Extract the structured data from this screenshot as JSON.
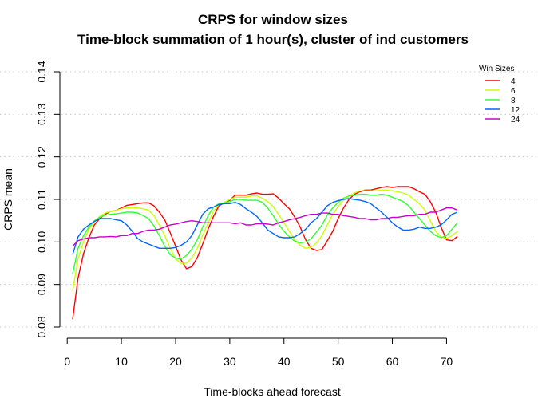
{
  "chart_data": {
    "type": "line",
    "title_line1": "CRPS for window sizes",
    "title_line2": "Time-block summation of 1 hour(s), cluster of ind customers",
    "xlabel": "Time-blocks ahead forecast",
    "ylabel": "CRPS mean",
    "xlim": [
      0,
      72
    ],
    "ylim": [
      0.08,
      0.14
    ],
    "x_ticks": [
      "0",
      "10",
      "20",
      "30",
      "40",
      "50",
      "60",
      "70"
    ],
    "y_ticks": [
      "0.08",
      "0.09",
      "0.10",
      "0.11",
      "0.12",
      "0.13",
      "0.14"
    ],
    "grid": "horizontal dotted",
    "legend_title": "Win Sizes",
    "legend_position": "top-right",
    "x": [
      1,
      2,
      3,
      4,
      5,
      6,
      7,
      8,
      9,
      10,
      11,
      12,
      13,
      14,
      15,
      16,
      17,
      18,
      19,
      20,
      21,
      22,
      23,
      24,
      25,
      26,
      27,
      28,
      29,
      30,
      31,
      32,
      33,
      34,
      35,
      36,
      37,
      38,
      39,
      40,
      41,
      42,
      43,
      44,
      45,
      46,
      47,
      48,
      49,
      50,
      51,
      52,
      53,
      54,
      55,
      56,
      57,
      58,
      59,
      60,
      61,
      62,
      63,
      64,
      65,
      66,
      67,
      68,
      69,
      70,
      71,
      72
    ],
    "series": [
      {
        "name": "4",
        "color": "#ff0000",
        "values": [
          0.0818,
          0.0915,
          0.0972,
          0.101,
          0.104,
          0.1055,
          0.1065,
          0.1072,
          0.1074,
          0.108,
          0.1086,
          0.1088,
          0.109,
          0.1092,
          0.1092,
          0.1085,
          0.107,
          0.1052,
          0.1022,
          0.099,
          0.0958,
          0.0937,
          0.0942,
          0.0963,
          0.0995,
          0.103,
          0.106,
          0.1085,
          0.1092,
          0.1098,
          0.111,
          0.111,
          0.111,
          0.1113,
          0.1115,
          0.1112,
          0.1112,
          0.1113,
          0.1103,
          0.109,
          0.1078,
          0.1058,
          0.1035,
          0.1005,
          0.0985,
          0.098,
          0.0982,
          0.1003,
          0.1025,
          0.1055,
          0.108,
          0.11,
          0.1112,
          0.1118,
          0.1122,
          0.1122,
          0.1125,
          0.1128,
          0.113,
          0.1128,
          0.113,
          0.113,
          0.113,
          0.1125,
          0.1118,
          0.1112,
          0.1095,
          0.107,
          0.1035,
          0.1005,
          0.1003,
          0.1013
        ]
      },
      {
        "name": "6",
        "color": "#ccff00",
        "values": [
          0.0885,
          0.096,
          0.1,
          0.103,
          0.1048,
          0.106,
          0.1068,
          0.1072,
          0.1074,
          0.1078,
          0.108,
          0.108,
          0.108,
          0.1078,
          0.1075,
          0.1062,
          0.104,
          0.1015,
          0.0985,
          0.096,
          0.095,
          0.095,
          0.0962,
          0.0985,
          0.1015,
          0.1045,
          0.1072,
          0.1088,
          0.1093,
          0.11,
          0.1105,
          0.1105,
          0.1105,
          0.1108,
          0.1108,
          0.1103,
          0.1095,
          0.1083,
          0.1065,
          0.1045,
          0.1025,
          0.1005,
          0.0992,
          0.0985,
          0.0988,
          0.0997,
          0.1015,
          0.104,
          0.1065,
          0.1083,
          0.1098,
          0.1108,
          0.1115,
          0.112,
          0.112,
          0.112,
          0.112,
          0.1122,
          0.1122,
          0.112,
          0.1118,
          0.1115,
          0.111,
          0.11,
          0.109,
          0.1075,
          0.105,
          0.1025,
          0.1012,
          0.1008,
          0.1015,
          0.1025
        ]
      },
      {
        "name": "8",
        "color": "#33ff33",
        "values": [
          0.0925,
          0.0985,
          0.1015,
          0.1035,
          0.105,
          0.1058,
          0.1063,
          0.1065,
          0.1066,
          0.1068,
          0.107,
          0.107,
          0.1068,
          0.1062,
          0.1055,
          0.1038,
          0.1015,
          0.099,
          0.097,
          0.0962,
          0.096,
          0.0968,
          0.0983,
          0.1005,
          0.1035,
          0.1062,
          0.1082,
          0.109,
          0.1092,
          0.1095,
          0.11,
          0.11,
          0.1098,
          0.1098,
          0.1098,
          0.1093,
          0.108,
          0.1062,
          0.1042,
          0.1025,
          0.1012,
          0.1002,
          0.0998,
          0.1,
          0.1008,
          0.1023,
          0.104,
          0.1063,
          0.108,
          0.1093,
          0.1103,
          0.1108,
          0.111,
          0.1112,
          0.1112,
          0.111,
          0.111,
          0.1112,
          0.111,
          0.1105,
          0.11,
          0.1095,
          0.1085,
          0.107,
          0.1055,
          0.104,
          0.1025,
          0.1015,
          0.101,
          0.1015,
          0.103,
          0.1045
        ]
      },
      {
        "name": "12",
        "color": "#0066ff",
        "values": [
          0.097,
          0.1012,
          0.103,
          0.104,
          0.1048,
          0.1055,
          0.1055,
          0.1055,
          0.1052,
          0.105,
          0.104,
          0.1025,
          0.1008,
          0.1,
          0.0995,
          0.099,
          0.0985,
          0.0985,
          0.0985,
          0.0987,
          0.0992,
          0.1,
          0.1015,
          0.104,
          0.1065,
          0.1078,
          0.1082,
          0.1088,
          0.109,
          0.109,
          0.1093,
          0.1088,
          0.1078,
          0.107,
          0.106,
          0.1045,
          0.1028,
          0.102,
          0.1012,
          0.101,
          0.101,
          0.1012,
          0.102,
          0.103,
          0.1045,
          0.1055,
          0.107,
          0.1085,
          0.1093,
          0.1097,
          0.11,
          0.1102,
          0.11,
          0.1098,
          0.1095,
          0.109,
          0.108,
          0.107,
          0.1058,
          0.1045,
          0.1035,
          0.1028,
          0.1028,
          0.103,
          0.1035,
          0.1032,
          0.1032,
          0.1035,
          0.104,
          0.1052,
          0.1065,
          0.107
        ]
      },
      {
        "name": "24",
        "color": "#cc00cc",
        "values": [
          0.099,
          0.1003,
          0.1007,
          0.101,
          0.101,
          0.1012,
          0.1012,
          0.1013,
          0.1012,
          0.1015,
          0.1015,
          0.102,
          0.102,
          0.1025,
          0.1028,
          0.1028,
          0.103,
          0.1035,
          0.104,
          0.1042,
          0.1045,
          0.1048,
          0.105,
          0.1048,
          0.1045,
          0.1045,
          0.1045,
          0.1045,
          0.1045,
          0.1045,
          0.1043,
          0.1045,
          0.104,
          0.104,
          0.1043,
          0.1043,
          0.1042,
          0.104,
          0.1045,
          0.1048,
          0.1052,
          0.1055,
          0.1058,
          0.1062,
          0.1065,
          0.1065,
          0.1068,
          0.1068,
          0.1065,
          0.1065,
          0.1062,
          0.106,
          0.1058,
          0.1055,
          0.1055,
          0.1052,
          0.1052,
          0.1055,
          0.1055,
          0.1058,
          0.1058,
          0.106,
          0.1062,
          0.1062,
          0.1065,
          0.1065,
          0.107,
          0.107,
          0.1075,
          0.108,
          0.108,
          0.1075
        ]
      }
    ]
  }
}
